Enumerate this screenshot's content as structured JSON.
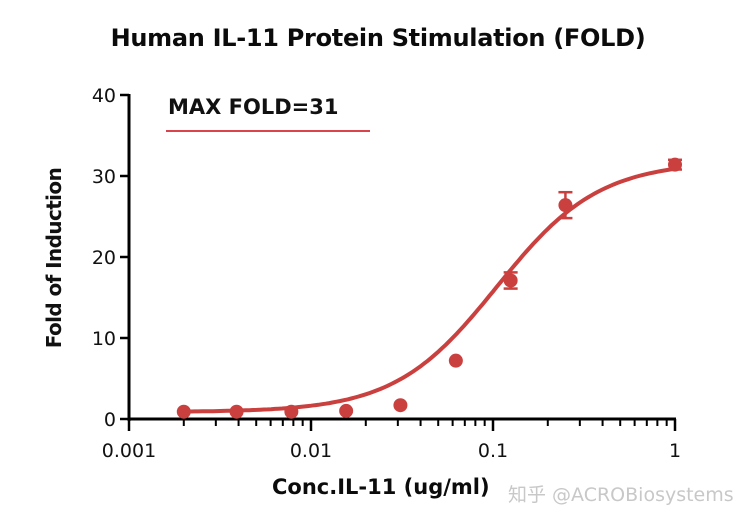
{
  "chart": {
    "title": "Human IL-11 Protein Stimulation (FOLD)",
    "ylabel": "Fold of Induction",
    "xlabel": "Conc.IL-11 (ug/ml)",
    "annotation": "MAX FOLD=31",
    "watermark": "知乎 @ACROBiosystems",
    "series_color": "#c9403f",
    "annotation_line_color": "#d9434b"
  },
  "chart_data": {
    "type": "scatter",
    "title": "Human IL-11 Protein Stimulation (FOLD)",
    "xlabel": "Conc.IL-11 (ug/ml)",
    "ylabel": "Fold of Induction",
    "xscale": "log",
    "xlim": [
      0.001,
      1
    ],
    "ylim": [
      0,
      40
    ],
    "xticks": [
      "0.001",
      "0.01",
      "0.1",
      "1"
    ],
    "yticks": [
      "0",
      "10",
      "20",
      "30",
      "40"
    ],
    "grid": false,
    "legend": null,
    "annotations": [
      "MAX FOLD=31"
    ],
    "series": [
      {
        "name": "Human IL-11",
        "fit": "4-parameter logistic (sigmoidal curve)",
        "x": [
          0.002,
          0.0039,
          0.0078,
          0.0156,
          0.031,
          0.0625,
          0.125,
          0.25,
          1.0
        ],
        "y": [
          0.9,
          0.9,
          0.9,
          1.0,
          1.7,
          7.2,
          17.1,
          26.4,
          31.4
        ],
        "error": [
          0.1,
          0.1,
          0.1,
          0.1,
          0.2,
          0.3,
          1.0,
          1.6,
          0.6
        ]
      }
    ]
  }
}
